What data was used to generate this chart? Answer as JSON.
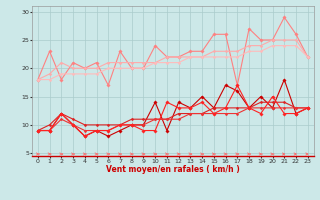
{
  "x": [
    0,
    1,
    2,
    3,
    4,
    5,
    6,
    7,
    8,
    9,
    10,
    11,
    12,
    13,
    14,
    15,
    16,
    17,
    18,
    19,
    20,
    21,
    22,
    23
  ],
  "series": [
    {
      "name": "rafales_max",
      "color": "#ff8080",
      "linewidth": 0.8,
      "marker": "D",
      "markersize": 1.8,
      "values": [
        18,
        23,
        18,
        21,
        20,
        21,
        17,
        23,
        20,
        20,
        24,
        22,
        22,
        23,
        23,
        26,
        26,
        17,
        27,
        25,
        25,
        29,
        26,
        22
      ]
    },
    {
      "name": "rafales_mean_upper",
      "color": "#ffaaaa",
      "linewidth": 0.8,
      "marker": "D",
      "markersize": 1.5,
      "values": [
        18,
        19,
        21,
        20,
        20,
        20,
        21,
        21,
        21,
        21,
        21,
        22,
        22,
        22,
        22,
        23,
        23,
        23,
        24,
        24,
        25,
        25,
        25,
        22
      ]
    },
    {
      "name": "rafales_mean_lower",
      "color": "#ffbbbb",
      "linewidth": 0.8,
      "marker": "D",
      "markersize": 1.5,
      "values": [
        18,
        18,
        19,
        19,
        19,
        19,
        20,
        20,
        20,
        20,
        21,
        21,
        21,
        22,
        22,
        22,
        22,
        22,
        23,
        23,
        24,
        24,
        24,
        22
      ]
    },
    {
      "name": "vent_max",
      "color": "#cc0000",
      "linewidth": 0.8,
      "marker": "D",
      "markersize": 1.8,
      "values": [
        9,
        9,
        12,
        10,
        8,
        9,
        8,
        9,
        10,
        10,
        14,
        9,
        14,
        13,
        15,
        13,
        17,
        16,
        13,
        15,
        13,
        18,
        12,
        13
      ]
    },
    {
      "name": "vent_mean_upper",
      "color": "#dd2222",
      "linewidth": 0.8,
      "marker": "D",
      "markersize": 1.5,
      "values": [
        9,
        10,
        12,
        11,
        10,
        10,
        10,
        10,
        11,
        11,
        11,
        11,
        12,
        12,
        12,
        13,
        13,
        13,
        13,
        14,
        14,
        14,
        13,
        13
      ]
    },
    {
      "name": "vent_mean_lower",
      "color": "#ee3333",
      "linewidth": 0.8,
      "marker": "D",
      "markersize": 1.5,
      "values": [
        9,
        9,
        11,
        10,
        9,
        9,
        9,
        10,
        10,
        10,
        11,
        11,
        11,
        12,
        12,
        12,
        12,
        12,
        13,
        13,
        13,
        13,
        13,
        13
      ]
    },
    {
      "name": "vent_min",
      "color": "#ff2222",
      "linewidth": 0.8,
      "marker": "D",
      "markersize": 1.8,
      "values": [
        9,
        9,
        12,
        10,
        8,
        9,
        9,
        10,
        10,
        9,
        9,
        14,
        13,
        13,
        14,
        12,
        13,
        17,
        13,
        12,
        15,
        12,
        12,
        13
      ]
    }
  ],
  "arrow_angles_deg": [
    0,
    0,
    0,
    0,
    0,
    0,
    0,
    -10,
    0,
    0,
    0,
    -10,
    -10,
    0,
    0,
    15,
    15,
    15,
    20,
    25,
    30,
    35,
    45,
    45
  ],
  "arrow_color": "#ff6666",
  "xlabel": "Vent moyen/en rafales ( km/h )",
  "xlim": [
    -0.5,
    23.5
  ],
  "ylim": [
    4.5,
    31
  ],
  "yticks": [
    5,
    10,
    15,
    20,
    25,
    30
  ],
  "xticks": [
    0,
    1,
    2,
    3,
    4,
    5,
    6,
    7,
    8,
    9,
    10,
    11,
    12,
    13,
    14,
    15,
    16,
    17,
    18,
    19,
    20,
    21,
    22,
    23
  ],
  "background_color": "#cce8e8",
  "grid_color": "#aacccc"
}
